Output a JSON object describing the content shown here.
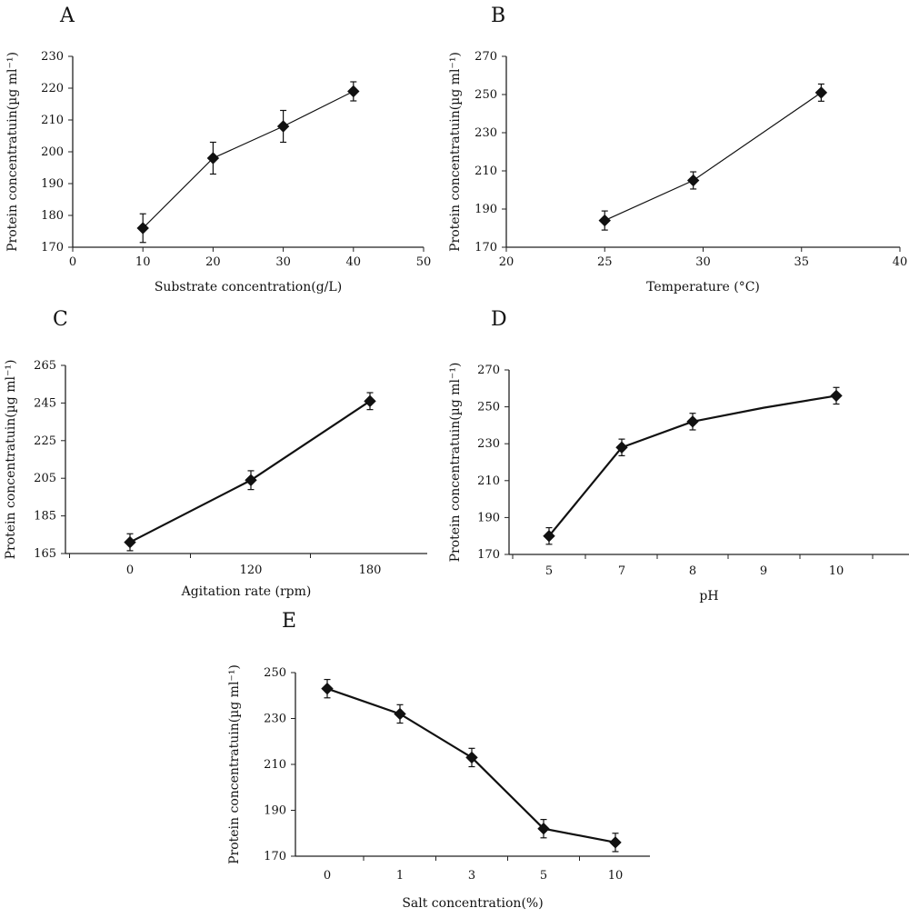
{
  "chart_data": [
    {
      "panel": "A",
      "type": "line",
      "xlabel": "Substrate concentration(g/L)",
      "ylabel": "Protein concentratuin(µg ml⁻¹)",
      "xlim": [
        0,
        50
      ],
      "ylim": [
        170,
        230
      ],
      "x_ticks": [
        "0",
        "10",
        "20",
        "30",
        "40",
        "50"
      ],
      "y_ticks": [
        "170",
        "180",
        "190",
        "200",
        "210",
        "220",
        "230"
      ],
      "series": [
        {
          "x": [
            10,
            20,
            30,
            40
          ],
          "y": [
            176,
            198,
            208,
            219
          ],
          "error": [
            4.5,
            5,
            5,
            3
          ]
        }
      ],
      "grid": false
    },
    {
      "panel": "B",
      "type": "line",
      "xlabel": "Temperature (°C)",
      "ylabel": "Protein concentratuin(µg ml⁻¹)",
      "xlim": [
        20,
        40
      ],
      "ylim": [
        170,
        270
      ],
      "x_ticks": [
        "20",
        "25",
        "30",
        "35",
        "40"
      ],
      "y_ticks": [
        "170",
        "190",
        "210",
        "230",
        "250",
        "270"
      ],
      "series": [
        {
          "x": [
            25,
            29.5,
            36
          ],
          "y": [
            184,
            205,
            251
          ],
          "error": [
            5,
            4.5,
            4.5
          ]
        }
      ],
      "grid": false
    },
    {
      "panel": "C",
      "type": "line",
      "xlabel": "Agitation rate (rpm)",
      "ylabel": "Protein concentratuin(µg ml⁻¹)",
      "categories": [
        "0",
        "120",
        "180"
      ],
      "ylim": [
        165,
        265
      ],
      "y_ticks": [
        "165",
        "185",
        "205",
        "225",
        "245",
        "265"
      ],
      "series": [
        {
          "values": [
            171,
            204,
            246
          ],
          "error": [
            4.5,
            5,
            4.5
          ]
        }
      ],
      "grid": false
    },
    {
      "panel": "D",
      "type": "line",
      "xlabel": "pH",
      "ylabel": "Protein concentratuin(µg ml⁻¹)",
      "categories": [
        "5",
        "7",
        "8",
        "9",
        "10"
      ],
      "ylim": [
        170,
        270
      ],
      "y_ticks": [
        "170",
        "190",
        "210",
        "230",
        "250",
        "270"
      ],
      "series": [
        {
          "values": [
            180,
            228,
            242,
            249.5,
            256
          ],
          "error": [
            4.5,
            4.5,
            4.5,
            null,
            4.5
          ]
        }
      ],
      "grid": false
    },
    {
      "panel": "E",
      "type": "line",
      "xlabel": "Salt concentration(%)",
      "ylabel": "Protein concentratuin(µg ml⁻¹)",
      "categories": [
        "0",
        "1",
        "3",
        "5",
        "10"
      ],
      "ylim": [
        170,
        250
      ],
      "y_ticks": [
        "170",
        "190",
        "210",
        "230",
        "250"
      ],
      "series": [
        {
          "values": [
            243,
            232,
            213,
            182,
            176
          ],
          "error": [
            4,
            4,
            4,
            4,
            4
          ]
        }
      ],
      "grid": false
    }
  ],
  "colors": {
    "line": "#111111",
    "marker": "#111111",
    "axis": "#222222"
  }
}
